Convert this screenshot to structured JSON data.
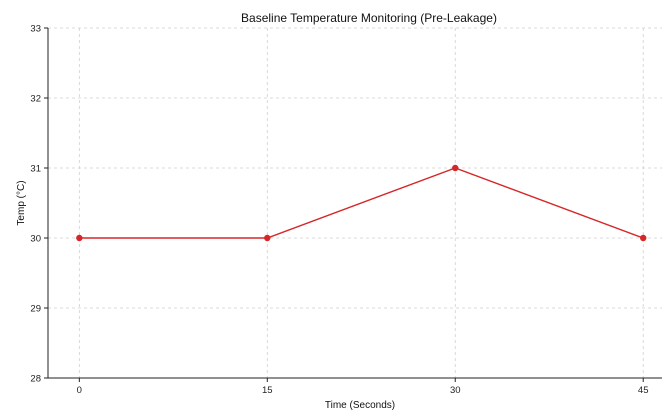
{
  "chart_data": {
    "type": "line",
    "title": "Baseline Temperature Monitoring (Pre-Leakage)",
    "xlabel": "Time (Seconds)",
    "ylabel": "Temp (°C)",
    "x": [
      0,
      15,
      30,
      45
    ],
    "series": [
      {
        "values": [
          30,
          30,
          31,
          30
        ],
        "color": "#d62728"
      }
    ],
    "xticks": [
      0,
      15,
      30,
      45
    ],
    "yticks": [
      28,
      29,
      30,
      31,
      32,
      33
    ],
    "xlim": [
      -2.5,
      46.5
    ],
    "ylim": [
      28,
      33
    ],
    "grid": true,
    "legend": false
  }
}
